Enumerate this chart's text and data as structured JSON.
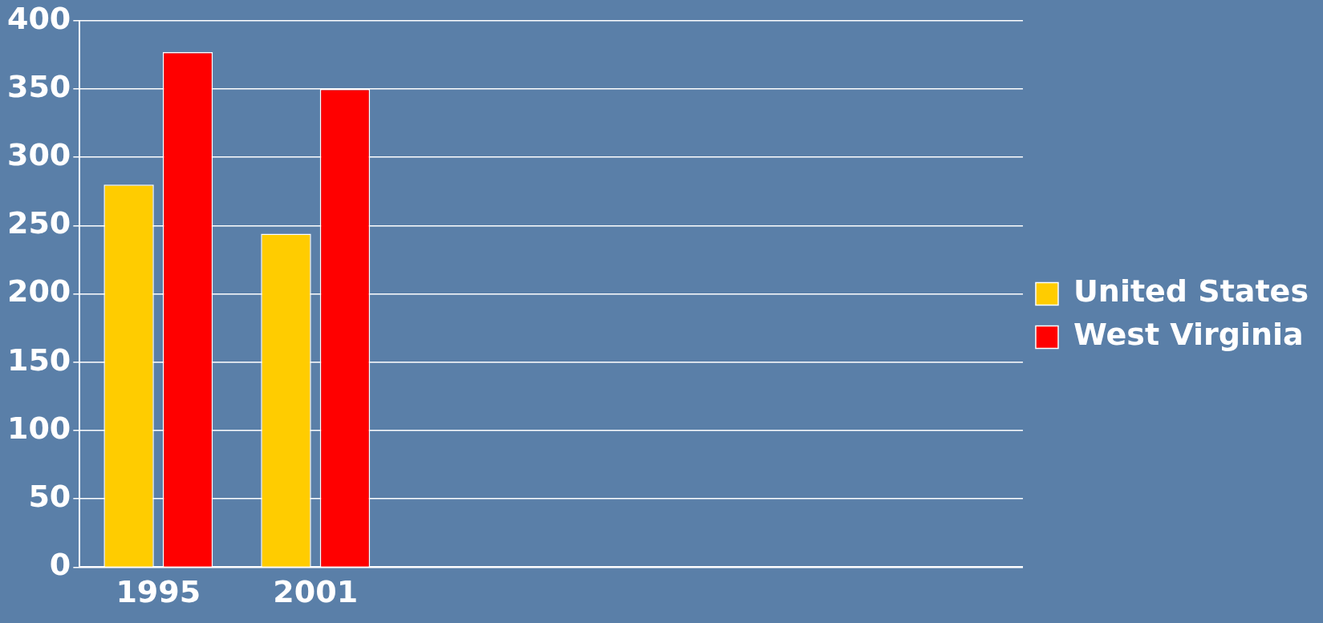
{
  "chart_data": {
    "type": "bar",
    "categories": [
      "1995",
      "2001",
      null,
      null,
      null,
      null
    ],
    "series": [
      {
        "name": "United States",
        "color": "#ffcc00",
        "values": [
          280,
          244,
          null,
          null,
          null,
          null
        ]
      },
      {
        "name": "West Virginia",
        "color": "#ff0000",
        "values": [
          377,
          350,
          null,
          null,
          null,
          null
        ]
      }
    ],
    "ylim": [
      0,
      400
    ],
    "yticks": [
      0,
      50,
      100,
      150,
      200,
      250,
      300,
      350,
      400
    ],
    "grid": "y",
    "legend": "right"
  }
}
